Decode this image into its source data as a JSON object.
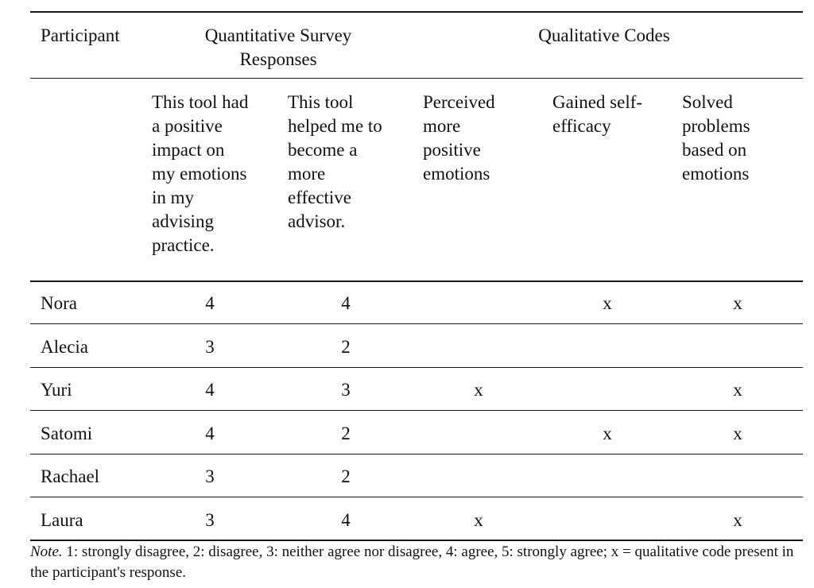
{
  "header": {
    "participant": "Participant",
    "group_quant": "Quantitative Survey\nResponses",
    "group_qual": "Qualitative Codes"
  },
  "subheaders": [
    "This tool had\na positive\nimpact on\nmy emotions\nin my\nadvising\npractice.",
    "This tool\nhelped me to\nbecome a\nmore\neffective\nadvisor.",
    "Perceived\nmore\npositive\nemotions",
    "Gained self-\nefficacy",
    "Solved\nproblems\nbased on\nemotions"
  ],
  "rows": [
    {
      "name": "Nora",
      "q1": "4",
      "q2": "4",
      "c1": "",
      "c2": "x",
      "c3": "x"
    },
    {
      "name": "Alecia",
      "q1": "3",
      "q2": "2",
      "c1": "",
      "c2": "",
      "c3": ""
    },
    {
      "name": "Yuri",
      "q1": "4",
      "q2": "3",
      "c1": "x",
      "c2": "",
      "c3": "x"
    },
    {
      "name": "Satomi",
      "q1": "4",
      "q2": "2",
      "c1": "",
      "c2": "x",
      "c3": "x"
    },
    {
      "name": "Rachael",
      "q1": "3",
      "q2": "2",
      "c1": "",
      "c2": "",
      "c3": ""
    },
    {
      "name": "Laura",
      "q1": "3",
      "q2": "4",
      "c1": "x",
      "c2": "",
      "c3": "x"
    }
  ],
  "note": {
    "label": "Note.",
    "text": " 1: strongly disagree, 2: disagree, 3: neither agree nor disagree, 4: agree, 5: strongly agree; x = qualitative code present in the participant's response."
  }
}
